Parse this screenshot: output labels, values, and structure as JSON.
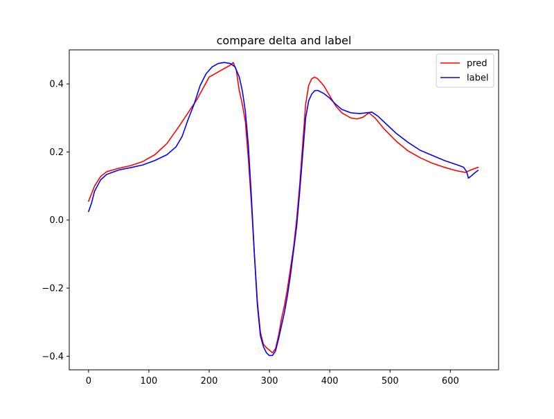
{
  "chart_data": {
    "type": "line",
    "title": "compare delta and label",
    "xlabel": "",
    "ylabel": "",
    "xlim": [
      -32,
      680
    ],
    "ylim": [
      -0.44,
      0.5
    ],
    "x_ticks": [
      0,
      100,
      200,
      300,
      400,
      500,
      600
    ],
    "x_tick_labels": [
      "0",
      "100",
      "200",
      "300",
      "400",
      "500",
      "600"
    ],
    "y_ticks": [
      -0.4,
      -0.2,
      0.0,
      0.2,
      0.4
    ],
    "y_tick_labels": [
      "−0.4",
      "−0.2",
      "0.0",
      "0.2",
      "0.4"
    ],
    "grid": false,
    "legend_position": "top-right",
    "series": [
      {
        "name": "pred",
        "color": "#ff0000",
        "points": [
          [
            0,
            0.055
          ],
          [
            10,
            0.1
          ],
          [
            20,
            0.128
          ],
          [
            30,
            0.142
          ],
          [
            50,
            0.152
          ],
          [
            70,
            0.16
          ],
          [
            90,
            0.172
          ],
          [
            110,
            0.192
          ],
          [
            130,
            0.225
          ],
          [
            150,
            0.275
          ],
          [
            165,
            0.315
          ],
          [
            180,
            0.355
          ],
          [
            200,
            0.42
          ],
          [
            220,
            0.44
          ],
          [
            235,
            0.455
          ],
          [
            240,
            0.463
          ],
          [
            245,
            0.44
          ],
          [
            250,
            0.38
          ],
          [
            255,
            0.34
          ],
          [
            260,
            0.29
          ],
          [
            265,
            0.18
          ],
          [
            270,
            0.05
          ],
          [
            275,
            -0.1
          ],
          [
            280,
            -0.24
          ],
          [
            285,
            -0.33
          ],
          [
            290,
            -0.365
          ],
          [
            295,
            -0.375
          ],
          [
            300,
            -0.382
          ],
          [
            305,
            -0.39
          ],
          [
            310,
            -0.378
          ],
          [
            315,
            -0.34
          ],
          [
            320,
            -0.29
          ],
          [
            325,
            -0.25
          ],
          [
            330,
            -0.2
          ],
          [
            335,
            -0.14
          ],
          [
            340,
            -0.08
          ],
          [
            345,
            0.0
          ],
          [
            350,
            0.1
          ],
          [
            355,
            0.22
          ],
          [
            360,
            0.34
          ],
          [
            365,
            0.395
          ],
          [
            370,
            0.415
          ],
          [
            375,
            0.42
          ],
          [
            380,
            0.415
          ],
          [
            390,
            0.395
          ],
          [
            400,
            0.365
          ],
          [
            410,
            0.335
          ],
          [
            420,
            0.315
          ],
          [
            435,
            0.3
          ],
          [
            445,
            0.297
          ],
          [
            455,
            0.302
          ],
          [
            465,
            0.315
          ],
          [
            475,
            0.3
          ],
          [
            490,
            0.268
          ],
          [
            510,
            0.232
          ],
          [
            530,
            0.203
          ],
          [
            550,
            0.183
          ],
          [
            570,
            0.167
          ],
          [
            590,
            0.155
          ],
          [
            610,
            0.145
          ],
          [
            625,
            0.14
          ],
          [
            635,
            0.148
          ],
          [
            646,
            0.155
          ]
        ]
      },
      {
        "name": "label",
        "color": "#0000ff",
        "points": [
          [
            0,
            0.025
          ],
          [
            5,
            0.05
          ],
          [
            10,
            0.085
          ],
          [
            20,
            0.118
          ],
          [
            30,
            0.134
          ],
          [
            50,
            0.147
          ],
          [
            70,
            0.154
          ],
          [
            90,
            0.162
          ],
          [
            110,
            0.175
          ],
          [
            130,
            0.192
          ],
          [
            145,
            0.215
          ],
          [
            155,
            0.245
          ],
          [
            165,
            0.295
          ],
          [
            175,
            0.34
          ],
          [
            185,
            0.395
          ],
          [
            195,
            0.43
          ],
          [
            205,
            0.45
          ],
          [
            215,
            0.46
          ],
          [
            225,
            0.463
          ],
          [
            235,
            0.46
          ],
          [
            243,
            0.45
          ],
          [
            250,
            0.42
          ],
          [
            255,
            0.38
          ],
          [
            260,
            0.32
          ],
          [
            265,
            0.22
          ],
          [
            270,
            0.07
          ],
          [
            275,
            -0.1
          ],
          [
            280,
            -0.25
          ],
          [
            285,
            -0.34
          ],
          [
            290,
            -0.372
          ],
          [
            295,
            -0.39
          ],
          [
            300,
            -0.398
          ],
          [
            305,
            -0.398
          ],
          [
            310,
            -0.385
          ],
          [
            315,
            -0.35
          ],
          [
            320,
            -0.31
          ],
          [
            325,
            -0.27
          ],
          [
            330,
            -0.22
          ],
          [
            335,
            -0.16
          ],
          [
            340,
            -0.09
          ],
          [
            345,
            -0.02
          ],
          [
            350,
            0.08
          ],
          [
            355,
            0.19
          ],
          [
            360,
            0.3
          ],
          [
            365,
            0.35
          ],
          [
            370,
            0.37
          ],
          [
            375,
            0.38
          ],
          [
            380,
            0.381
          ],
          [
            390,
            0.372
          ],
          [
            400,
            0.358
          ],
          [
            410,
            0.34
          ],
          [
            420,
            0.325
          ],
          [
            435,
            0.315
          ],
          [
            450,
            0.313
          ],
          [
            460,
            0.315
          ],
          [
            470,
            0.317
          ],
          [
            480,
            0.305
          ],
          [
            495,
            0.28
          ],
          [
            510,
            0.255
          ],
          [
            530,
            0.228
          ],
          [
            550,
            0.205
          ],
          [
            570,
            0.19
          ],
          [
            590,
            0.175
          ],
          [
            610,
            0.163
          ],
          [
            622,
            0.155
          ],
          [
            627,
            0.142
          ],
          [
            630,
            0.123
          ],
          [
            635,
            0.13
          ],
          [
            640,
            0.138
          ],
          [
            646,
            0.146
          ]
        ]
      }
    ]
  }
}
